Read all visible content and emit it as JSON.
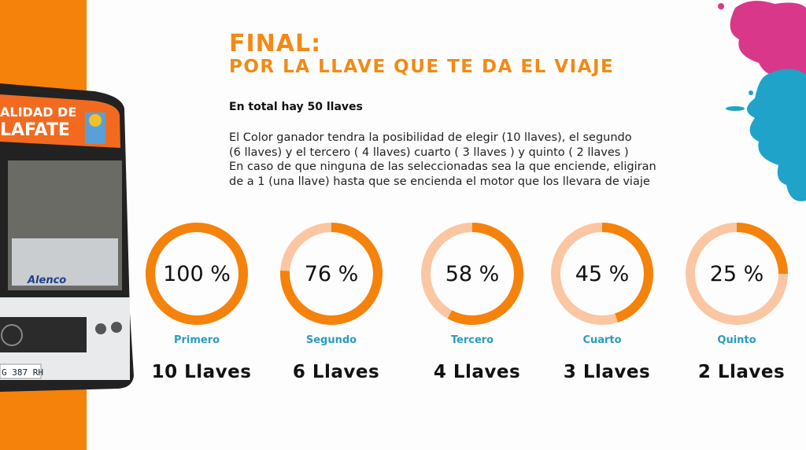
{
  "title": "FINAL:",
  "subtitle": "POR LA LLAVE QUE TE DA EL VIAJE",
  "total": "En total hay 50 llaves",
  "description": "El Color ganador tendra la posibilidad de elegir (10 llaves), el segundo\n(6 llaves) y el tercero ( 4 llaves) cuarto ( 3 llaves ) y quinto ( 2 llaves )\nEn caso de que ninguna de las seleccionadas sea la que enciende, eligiran\nde a 1 (una llave) hasta que se encienda el motor que los llevara de viaje",
  "bus": {
    "sign_line1": "ALIDAD DE",
    "sign_line2": "LAFATE",
    "brand": "Alenco",
    "plate": "G 387 RH"
  },
  "colors": {
    "accent": "#F5820A",
    "track": "#FBC6A2",
    "place_label": "#2A9BC0"
  },
  "prizes": [
    {
      "percent_label": "100 %",
      "percent": 100,
      "place": "Primero",
      "keys": "10 Llaves"
    },
    {
      "percent_label": "76 %",
      "percent": 76,
      "place": "Segundo",
      "keys": "6 Llaves"
    },
    {
      "percent_label": "58 %",
      "percent": 58,
      "place": "Tercero",
      "keys": "4 Llaves"
    },
    {
      "percent_label": "45 %",
      "percent": 45,
      "place": "Cuarto",
      "keys": "3 Llaves"
    },
    {
      "percent_label": "25 %",
      "percent": 25,
      "place": "Quinto",
      "keys": "2 Llaves"
    }
  ]
}
